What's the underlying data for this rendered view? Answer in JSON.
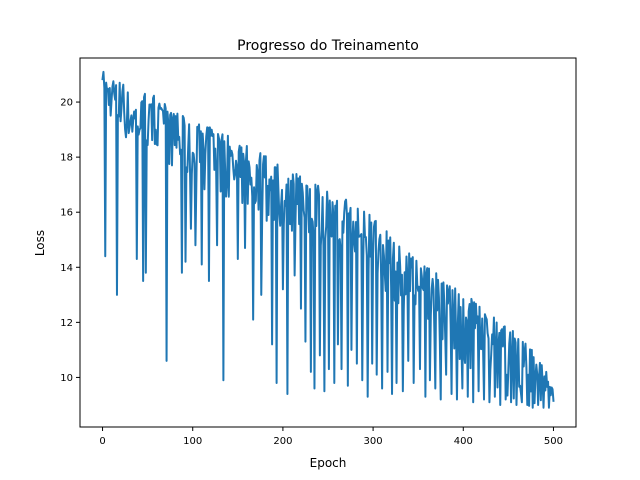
{
  "chart_data": {
    "type": "line",
    "title": "Progresso do Treinamento",
    "xlabel": "Epoch",
    "ylabel": "Loss",
    "xlim": [
      -25,
      525
    ],
    "ylim": [
      8.2,
      21.6
    ],
    "xticks": [
      0,
      100,
      200,
      300,
      400,
      500
    ],
    "yticks": [
      10,
      12,
      14,
      16,
      18,
      20
    ],
    "grid": false,
    "legend": "none",
    "colors": {
      "series": "#1f77b4"
    },
    "series": [
      {
        "name": "",
        "envelope_upper": [
          [
            0,
            21.2
          ],
          [
            20,
            20.8
          ],
          [
            40,
            20.4
          ],
          [
            60,
            20.2
          ],
          [
            80,
            19.8
          ],
          [
            100,
            19.4
          ],
          [
            130,
            18.9
          ],
          [
            160,
            18.5
          ],
          [
            190,
            17.9
          ],
          [
            220,
            17.3
          ],
          [
            250,
            16.8
          ],
          [
            280,
            16.3
          ],
          [
            310,
            15.6
          ],
          [
            340,
            14.6
          ],
          [
            370,
            13.8
          ],
          [
            400,
            13.1
          ],
          [
            430,
            12.4
          ],
          [
            460,
            11.6
          ],
          [
            490,
            10.5
          ],
          [
            500,
            9.7
          ]
        ],
        "envelope_typical": [
          [
            0,
            20.5
          ],
          [
            20,
            19.6
          ],
          [
            40,
            19.2
          ],
          [
            60,
            18.9
          ],
          [
            80,
            18.5
          ],
          [
            100,
            18.0
          ],
          [
            130,
            17.5
          ],
          [
            160,
            17.1
          ],
          [
            190,
            16.5
          ],
          [
            220,
            16.0
          ],
          [
            250,
            15.5
          ],
          [
            280,
            15.0
          ],
          [
            310,
            14.2
          ],
          [
            340,
            13.2
          ],
          [
            370,
            12.4
          ],
          [
            400,
            11.6
          ],
          [
            430,
            10.9
          ],
          [
            460,
            10.1
          ],
          [
            490,
            9.4
          ],
          [
            500,
            9.2
          ]
        ],
        "dips": [
          [
            3,
            14.4
          ],
          [
            16,
            13.0
          ],
          [
            38,
            14.3
          ],
          [
            45,
            13.5
          ],
          [
            48,
            13.8
          ],
          [
            71,
            10.6
          ],
          [
            88,
            13.8
          ],
          [
            92,
            14.2
          ],
          [
            98,
            15.4
          ],
          [
            103,
            14.8
          ],
          [
            110,
            14.1
          ],
          [
            118,
            13.5
          ],
          [
            127,
            14.8
          ],
          [
            134,
            9.9
          ],
          [
            150,
            14.3
          ],
          [
            158,
            14.7
          ],
          [
            167,
            12.1
          ],
          [
            176,
            13.0
          ],
          [
            188,
            11.2
          ],
          [
            193,
            9.8
          ],
          [
            200,
            13.2
          ],
          [
            205,
            9.4
          ],
          [
            213,
            13.7
          ],
          [
            220,
            12.5
          ],
          [
            225,
            11.3
          ],
          [
            231,
            10.2
          ],
          [
            235,
            9.6
          ],
          [
            241,
            10.8
          ],
          [
            246,
            9.5
          ],
          [
            251,
            10.3
          ],
          [
            257,
            9.8
          ],
          [
            261,
            11.2
          ],
          [
            265,
            10.3
          ],
          [
            272,
            9.7
          ],
          [
            276,
            11.0
          ],
          [
            282,
            10.5
          ],
          [
            288,
            9.9
          ],
          [
            294,
            9.3
          ],
          [
            299,
            10.5
          ],
          [
            304,
            10.1
          ],
          [
            310,
            9.6
          ],
          [
            316,
            10.2
          ],
          [
            321,
            9.4
          ],
          [
            326,
            9.8
          ],
          [
            333,
            9.5
          ],
          [
            339,
            10.6
          ],
          [
            345,
            9.8
          ],
          [
            352,
            10.3
          ],
          [
            358,
            9.3
          ],
          [
            363,
            9.9
          ],
          [
            369,
            9.6
          ],
          [
            375,
            9.2
          ],
          [
            381,
            10.1
          ],
          [
            387,
            9.4
          ],
          [
            393,
            9.2
          ],
          [
            399,
            9.6
          ],
          [
            405,
            9.3
          ],
          [
            411,
            9.1
          ],
          [
            417,
            9.5
          ],
          [
            423,
            9.2
          ],
          [
            429,
            9.1
          ],
          [
            435,
            9.3
          ],
          [
            441,
            9.0
          ],
          [
            447,
            9.2
          ],
          [
            453,
            9.1
          ],
          [
            459,
            9.0
          ],
          [
            465,
            9.1
          ],
          [
            471,
            9.0
          ],
          [
            477,
            8.9
          ],
          [
            483,
            9.0
          ],
          [
            489,
            8.9
          ],
          [
            495,
            8.9
          ]
        ]
      }
    ]
  }
}
